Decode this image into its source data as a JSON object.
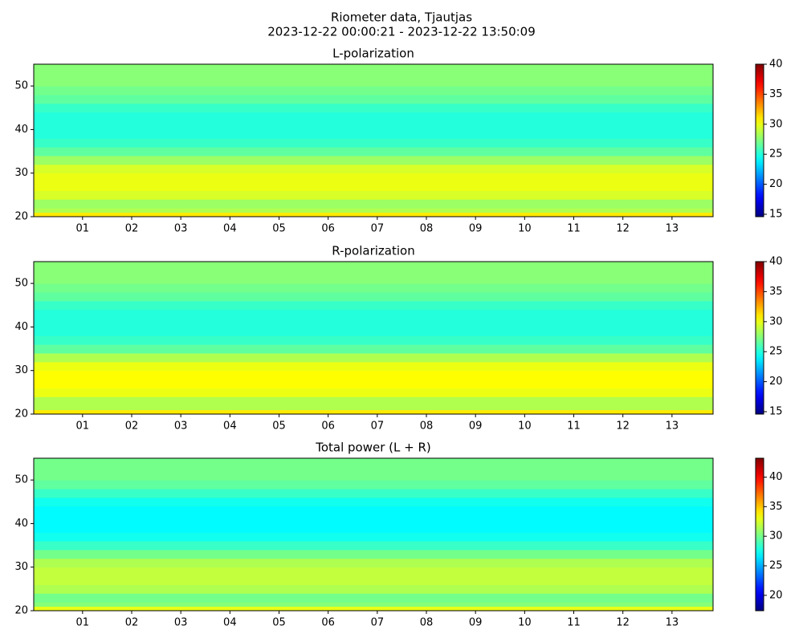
{
  "figure": {
    "title": "Riometer data, Tjautjas",
    "subtitle": "2023-12-22 00:00:21 - 2023-12-22 13:50:09"
  },
  "chart_data": [
    {
      "type": "heatmap",
      "title": "L-polarization",
      "colormap": "jet",
      "xlim": [
        0.0058,
        13.836
      ],
      "xticks": [
        {
          "value": 1,
          "label": "01"
        },
        {
          "value": 2,
          "label": "02"
        },
        {
          "value": 3,
          "label": "03"
        },
        {
          "value": 4,
          "label": "04"
        },
        {
          "value": 5,
          "label": "05"
        },
        {
          "value": 6,
          "label": "06"
        },
        {
          "value": 7,
          "label": "07"
        },
        {
          "value": 8,
          "label": "08"
        },
        {
          "value": 9,
          "label": "09"
        },
        {
          "value": 10,
          "label": "10"
        },
        {
          "value": 11,
          "label": "11"
        },
        {
          "value": 12,
          "label": "12"
        },
        {
          "value": 13,
          "label": "13"
        }
      ],
      "ylim": [
        20,
        55
      ],
      "yticks": [
        20,
        30,
        40,
        50
      ],
      "ybins": [
        20,
        21,
        22,
        24,
        26,
        28,
        30,
        32,
        34,
        36,
        38,
        40,
        42,
        44,
        46,
        48,
        50,
        52,
        55
      ],
      "values": [
        31,
        28.5,
        28,
        29.5,
        30,
        30,
        29.5,
        28,
        26.5,
        25.5,
        25,
        25,
        25,
        25.5,
        26.5,
        27,
        27.5,
        27.5
      ],
      "clim": [
        14.6,
        40
      ],
      "cticks": [
        15,
        20,
        25,
        30,
        35,
        40
      ]
    },
    {
      "type": "heatmap",
      "title": "R-polarization",
      "colormap": "jet",
      "xlim": [
        0.0058,
        13.836
      ],
      "xticks": [
        {
          "value": 1,
          "label": "01"
        },
        {
          "value": 2,
          "label": "02"
        },
        {
          "value": 3,
          "label": "03"
        },
        {
          "value": 4,
          "label": "04"
        },
        {
          "value": 5,
          "label": "05"
        },
        {
          "value": 6,
          "label": "06"
        },
        {
          "value": 7,
          "label": "07"
        },
        {
          "value": 8,
          "label": "08"
        },
        {
          "value": 9,
          "label": "09"
        },
        {
          "value": 10,
          "label": "10"
        },
        {
          "value": 11,
          "label": "11"
        },
        {
          "value": 12,
          "label": "12"
        },
        {
          "value": 13,
          "label": "13"
        }
      ],
      "ylim": [
        20,
        55
      ],
      "yticks": [
        20,
        30,
        40,
        50
      ],
      "ybins": [
        20,
        21,
        22,
        24,
        26,
        28,
        30,
        32,
        34,
        36,
        38,
        40,
        42,
        44,
        46,
        48,
        50,
        52,
        55
      ],
      "values": [
        31,
        28.5,
        28.5,
        30,
        30.5,
        30.5,
        30,
        28.5,
        26.5,
        25.5,
        25,
        25,
        25,
        25.5,
        26.5,
        27,
        27.5,
        27.5
      ],
      "clim": [
        14.6,
        40
      ],
      "cticks": [
        15,
        20,
        25,
        30,
        35,
        40
      ]
    },
    {
      "type": "heatmap",
      "title": "Total power (L + R)",
      "colormap": "jet",
      "xlim": [
        0.0058,
        13.836
      ],
      "xticks": [
        {
          "value": 1,
          "label": "01"
        },
        {
          "value": 2,
          "label": "02"
        },
        {
          "value": 3,
          "label": "03"
        },
        {
          "value": 4,
          "label": "04"
        },
        {
          "value": 5,
          "label": "05"
        },
        {
          "value": 6,
          "label": "06"
        },
        {
          "value": 7,
          "label": "07"
        },
        {
          "value": 8,
          "label": "08"
        },
        {
          "value": 9,
          "label": "09"
        },
        {
          "value": 10,
          "label": "10"
        },
        {
          "value": 11,
          "label": "11"
        },
        {
          "value": 12,
          "label": "12"
        },
        {
          "value": 13,
          "label": "13"
        }
      ],
      "ylim": [
        20,
        55
      ],
      "yticks": [
        20,
        30,
        40,
        50
      ],
      "ybins": [
        20,
        21,
        22,
        24,
        26,
        28,
        30,
        32,
        34,
        36,
        38,
        40,
        42,
        44,
        46,
        48,
        50,
        52,
        55
      ],
      "values": [
        33,
        30.5,
        30,
        31.5,
        32,
        32,
        31.5,
        30,
        28.5,
        27.5,
        27,
        27,
        27,
        27.5,
        28.5,
        29.5,
        30,
        30
      ],
      "clim": [
        17.4,
        43.2
      ],
      "cticks": [
        20,
        25,
        30,
        35,
        40
      ]
    }
  ]
}
